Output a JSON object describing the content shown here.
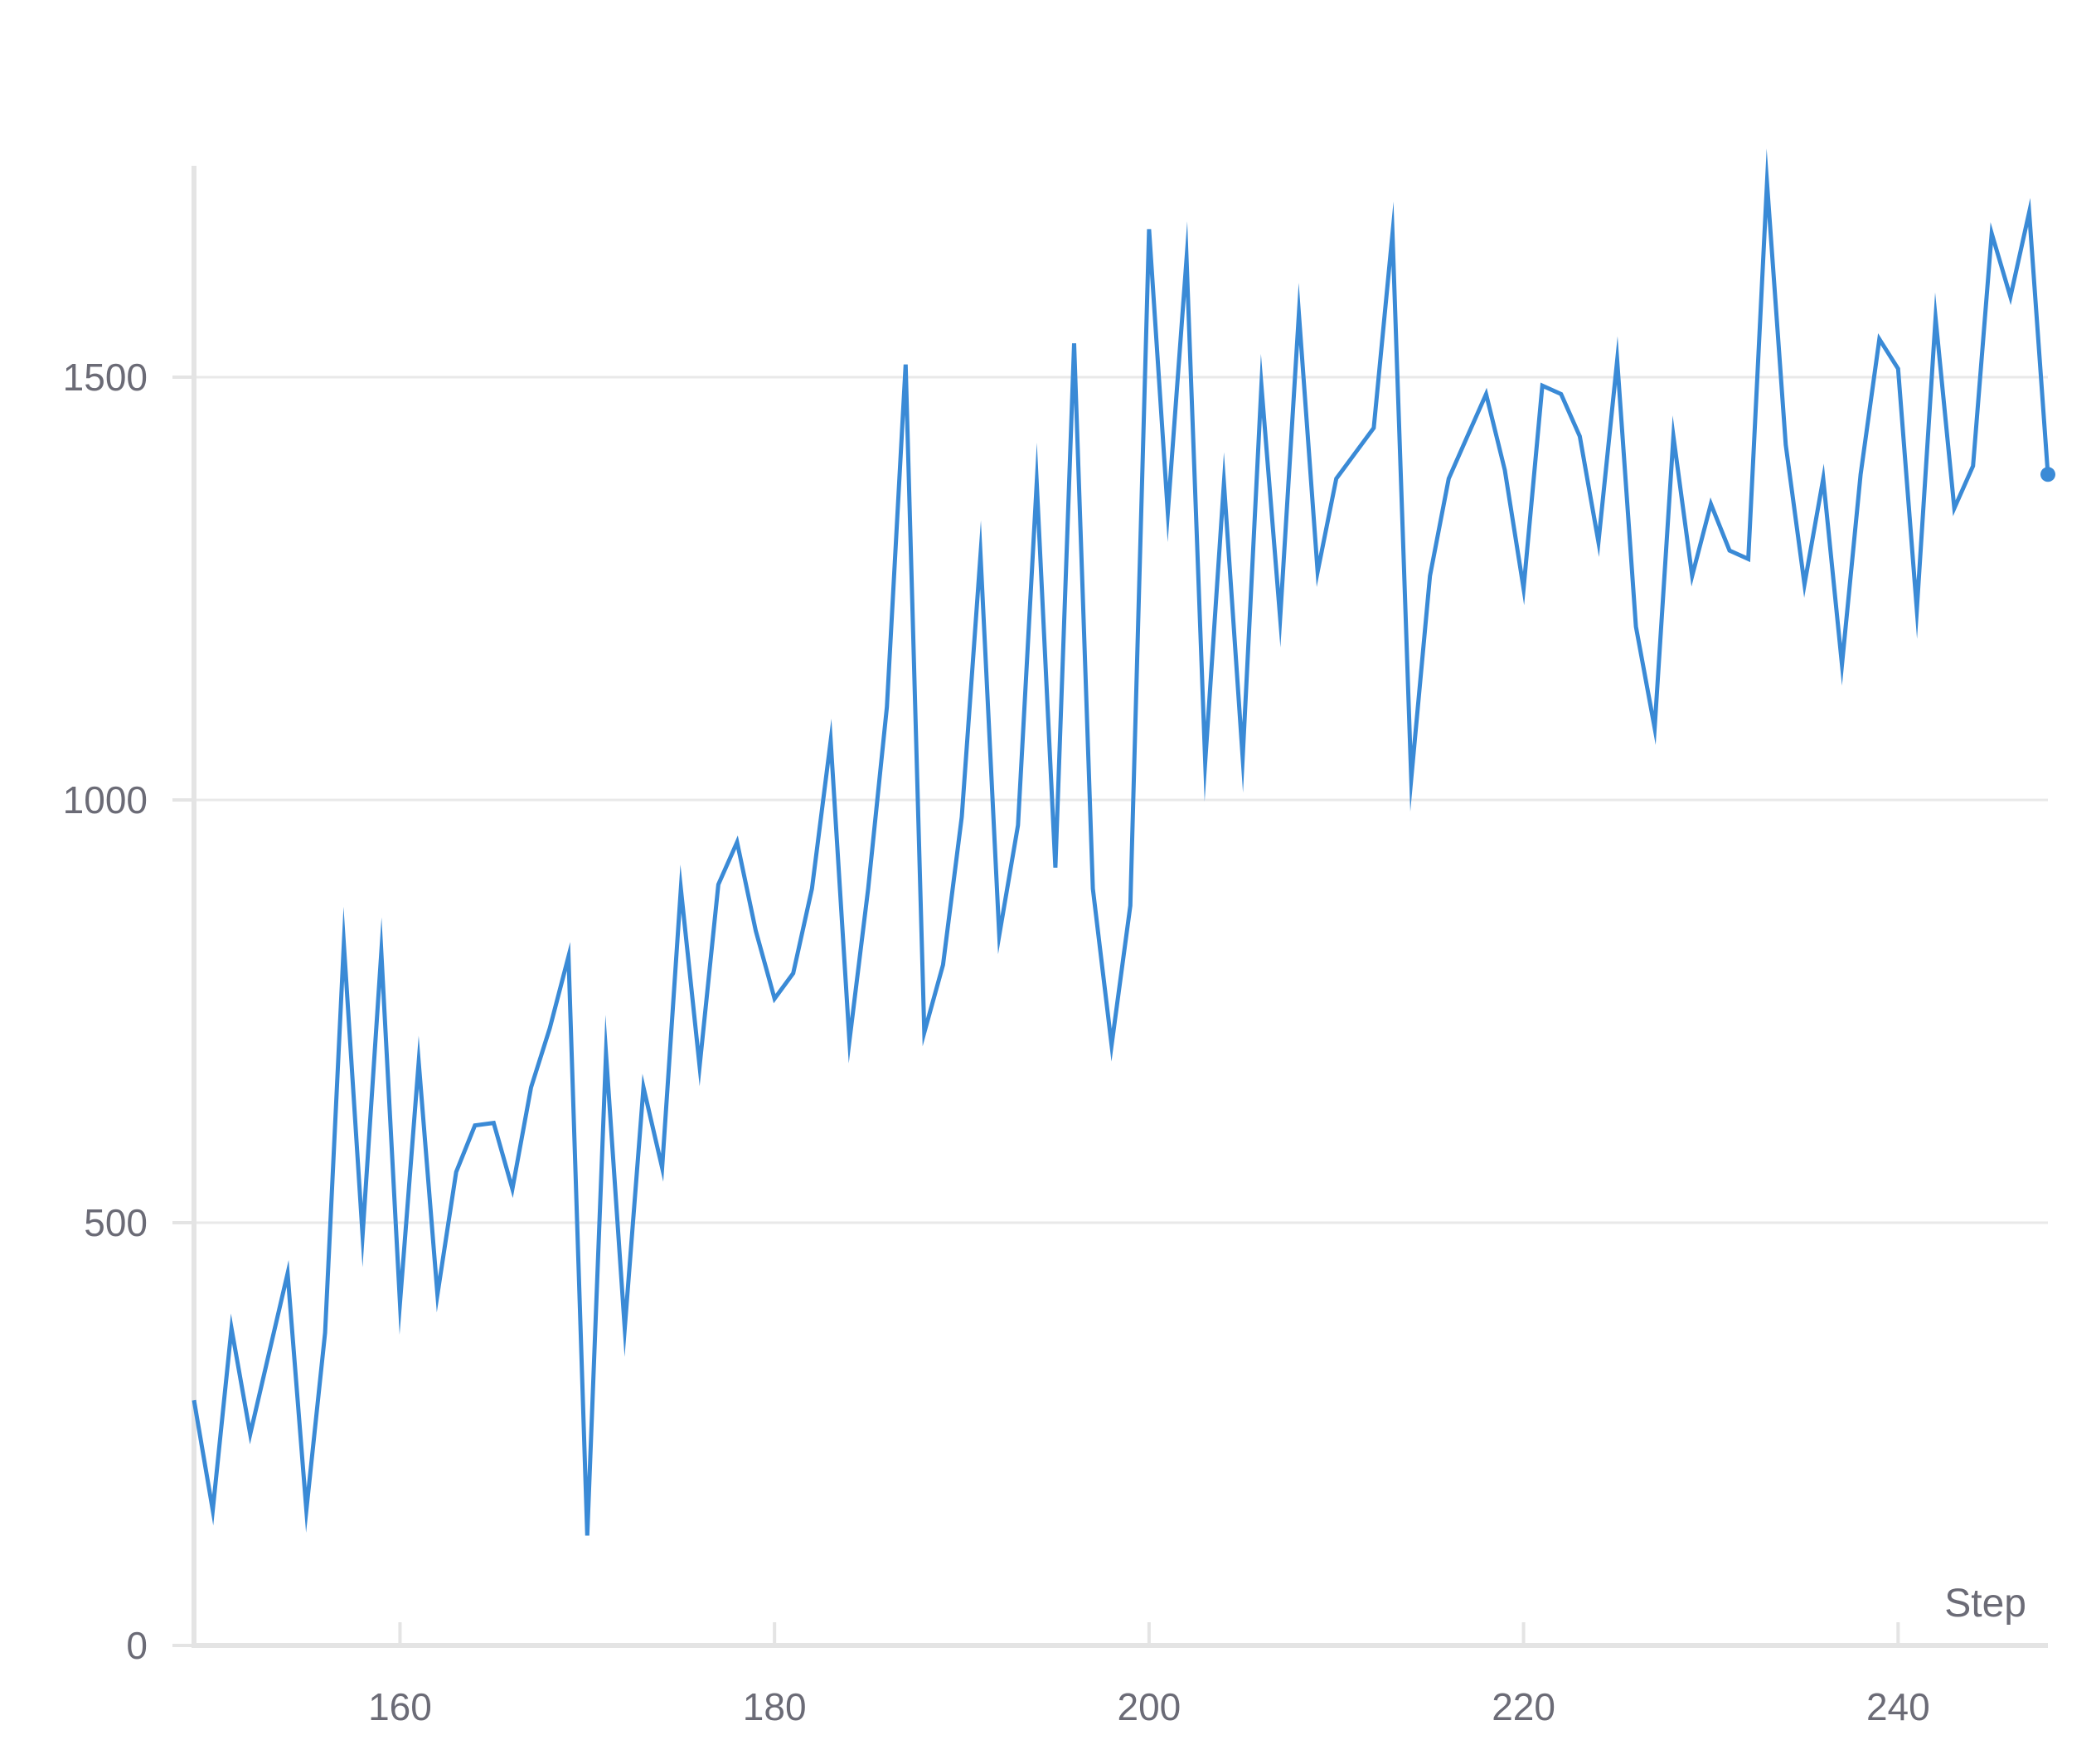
{
  "chart_data": {
    "type": "line",
    "xlabel": "Step",
    "ylabel": "",
    "xlim": [
      149,
      248
    ],
    "ylim": [
      0,
      1750
    ],
    "x_ticks": [
      160,
      180,
      200,
      220,
      240
    ],
    "y_ticks": [
      0,
      500,
      1000,
      1500
    ],
    "grid": true,
    "line_color": "#3a8ad6",
    "series": [
      {
        "x": [
          149,
          150,
          151,
          152,
          153,
          154,
          155,
          156,
          157,
          158,
          159,
          160,
          161,
          162,
          163,
          164,
          165,
          166,
          167,
          168,
          169,
          170,
          171,
          172,
          173,
          174,
          175,
          176,
          177,
          178,
          179,
          180,
          181,
          182,
          183,
          184,
          185,
          186,
          187,
          188,
          189,
          190,
          191,
          192,
          193,
          194,
          195,
          196,
          197,
          198,
          199,
          200,
          201,
          202,
          203,
          204,
          205,
          206,
          207,
          208,
          209,
          210,
          211,
          212,
          213,
          214,
          215,
          216,
          217,
          218,
          219,
          220,
          221,
          222,
          223,
          224,
          225,
          226,
          227,
          228,
          229,
          230,
          231,
          232,
          233,
          234,
          235,
          236,
          237,
          238,
          239,
          240,
          241,
          242,
          243,
          244,
          245,
          246,
          247,
          248
        ],
        "values": [
          290,
          160,
          375,
          250,
          345,
          440,
          160,
          370,
          830,
          485,
          820,
          405,
          690,
          415,
          560,
          615,
          618,
          540,
          660,
          730,
          815,
          130,
          700,
          375,
          660,
          565,
          895,
          685,
          900,
          950,
          845,
          765,
          795,
          895,
          1070,
          715,
          895,
          1110,
          1515,
          725,
          805,
          980,
          1290,
          840,
          970,
          1375,
          920,
          1540,
          895,
          710,
          875,
          1675,
          1340,
          1640,
          1045,
          1375,
          1050,
          1490,
          1215,
          1575,
          1270,
          1380,
          1410,
          1440,
          1670,
          1025,
          1265,
          1380,
          1430,
          1480,
          1390,
          1250,
          1490,
          1480,
          1430,
          1305,
          1520,
          1205,
          1085,
          1430,
          1265,
          1350,
          1295,
          1285,
          1730,
          1420,
          1255,
          1380,
          1160,
          1385,
          1545,
          1510,
          1225,
          1570,
          1345,
          1395,
          1670,
          1595,
          1695,
          1385
        ]
      }
    ]
  }
}
